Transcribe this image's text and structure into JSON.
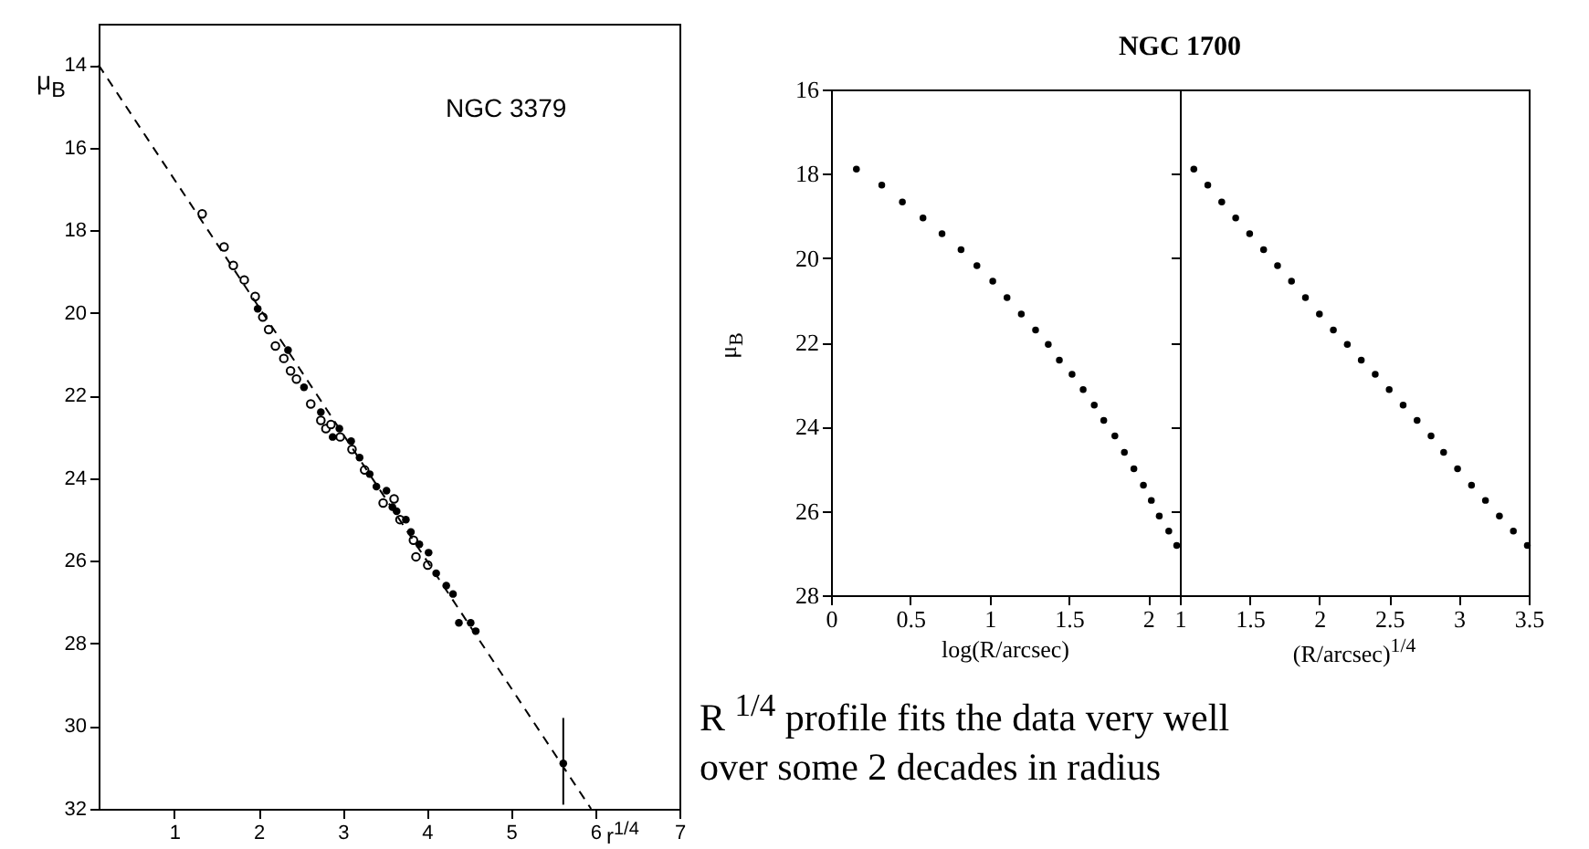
{
  "chart_data": [
    {
      "type": "scatter",
      "xlabel": "r$^{1/4}$",
      "ylabel": "μ$_{B}$",
      "annotations": [
        "NGC 3379"
      ],
      "marker": "circle",
      "xlim": [
        0.1,
        7
      ],
      "xticks": [
        1,
        2,
        3,
        4,
        5,
        6,
        7
      ],
      "ylim": [
        32,
        13
      ],
      "yticks": [
        14,
        16,
        18,
        20,
        22,
        24,
        26,
        28,
        30,
        32
      ],
      "series": [
        {
          "color": "#000000",
          "x": [
            1.33,
            1.59,
            1.7,
            1.83,
            1.96,
            2.05,
            2.12,
            2.2,
            2.3,
            2.38,
            2.45,
            2.62,
            2.74,
            2.8,
            2.86,
            2.97,
            3.11,
            3.26,
            3.48,
            3.61,
            3.68,
            3.84,
            3.87,
            4.01
          ],
          "values": [
            17.6,
            18.4,
            18.85,
            19.2,
            19.6,
            20.1,
            20.4,
            20.8,
            21.1,
            21.4,
            21.6,
            22.2,
            22.6,
            22.8,
            22.7,
            23.0,
            23.3,
            23.8,
            24.6,
            24.5,
            25.0,
            25.5,
            25.9,
            26.1
          ]
        },
        {
          "color": "#000000",
          "x": [
            1.99,
            2.35,
            2.54,
            2.74,
            2.88,
            2.96,
            3.1,
            3.2,
            3.32,
            3.4,
            3.52,
            3.59,
            3.64,
            3.75,
            3.81,
            3.91,
            4.02,
            4.11,
            4.23,
            4.31,
            4.38,
            4.52,
            4.58,
            5.62
          ],
          "values": [
            19.9,
            20.9,
            21.8,
            22.4,
            23.0,
            22.8,
            23.1,
            23.5,
            23.9,
            24.2,
            24.3,
            24.7,
            24.8,
            25.0,
            25.3,
            25.6,
            25.8,
            26.3,
            26.6,
            26.8,
            27.5,
            27.5,
            27.7,
            30.9
          ],
          "errors": [
            null,
            null,
            null,
            null,
            null,
            null,
            null,
            null,
            null,
            null,
            null,
            null,
            null,
            null,
            null,
            null,
            null,
            null,
            null,
            null,
            null,
            null,
            null,
            [
              29.8,
              31.9
            ]
          ]
        },
        {
          "type": "line",
          "marker": "none",
          "line_style": "dashed",
          "color": "#000000",
          "x": [
            0.1,
            5.95
          ],
          "values": [
            14.0,
            32.0
          ]
        }
      ]
    },
    {
      "type": "scatter",
      "title": "NGC 1700",
      "xlabel": "log(R/arcsec)",
      "ylabel": "μ$_{B}$",
      "marker": "circle",
      "annotations": [
        "R $^{1/4}$ profile fits the data very well over some 2 decades in radius"
      ],
      "xlim": [
        0,
        2.2
      ],
      "xticks": [
        0,
        0.5,
        1,
        1.5,
        2
      ],
      "ylim": [
        28,
        16
      ],
      "yticks": [
        16,
        18,
        20,
        22,
        24,
        26,
        28
      ],
      "series": [
        {
          "color": "#000000",
          "x": [
            0.16,
            0.32,
            0.45,
            0.58,
            0.7,
            0.82,
            0.92,
            1.02,
            1.11,
            1.2,
            1.29,
            1.37,
            1.44,
            1.52,
            1.59,
            1.66,
            1.72,
            1.79,
            1.85,
            1.91,
            1.97,
            2.02,
            2.07,
            2.13,
            2.18
          ],
          "values": [
            17.89,
            18.27,
            18.67,
            19.05,
            19.42,
            19.8,
            20.18,
            20.55,
            20.94,
            21.33,
            21.71,
            22.05,
            22.42,
            22.76,
            23.12,
            23.49,
            23.85,
            24.22,
            24.61,
            25.0,
            25.39,
            25.75,
            26.12,
            26.48,
            26.82
          ]
        }
      ]
    },
    {
      "type": "scatter",
      "xlabel": "(R/arcsec)$^{1/4}$",
      "marker": "circle",
      "tick_labels": "x",
      "xlim": [
        1,
        3.5
      ],
      "xticks": [
        1,
        1.5,
        2,
        2.5,
        3,
        3.5
      ],
      "ylim": [
        28,
        16
      ],
      "yticks": [
        16,
        18,
        20,
        22,
        24,
        26,
        28
      ],
      "series": [
        {
          "color": "#000000",
          "x": [
            1.1,
            1.2,
            1.3,
            1.4,
            1.5,
            1.6,
            1.7,
            1.8,
            1.9,
            2.0,
            2.1,
            2.2,
            2.3,
            2.4,
            2.5,
            2.6,
            2.7,
            2.8,
            2.89,
            2.99,
            3.09,
            3.19,
            3.29,
            3.39,
            3.49
          ],
          "values": [
            17.89,
            18.27,
            18.67,
            19.05,
            19.42,
            19.8,
            20.18,
            20.55,
            20.94,
            21.33,
            21.71,
            22.05,
            22.42,
            22.76,
            23.12,
            23.49,
            23.85,
            24.22,
            24.61,
            25.0,
            25.39,
            25.75,
            26.12,
            26.48,
            26.82
          ]
        }
      ]
    }
  ]
}
